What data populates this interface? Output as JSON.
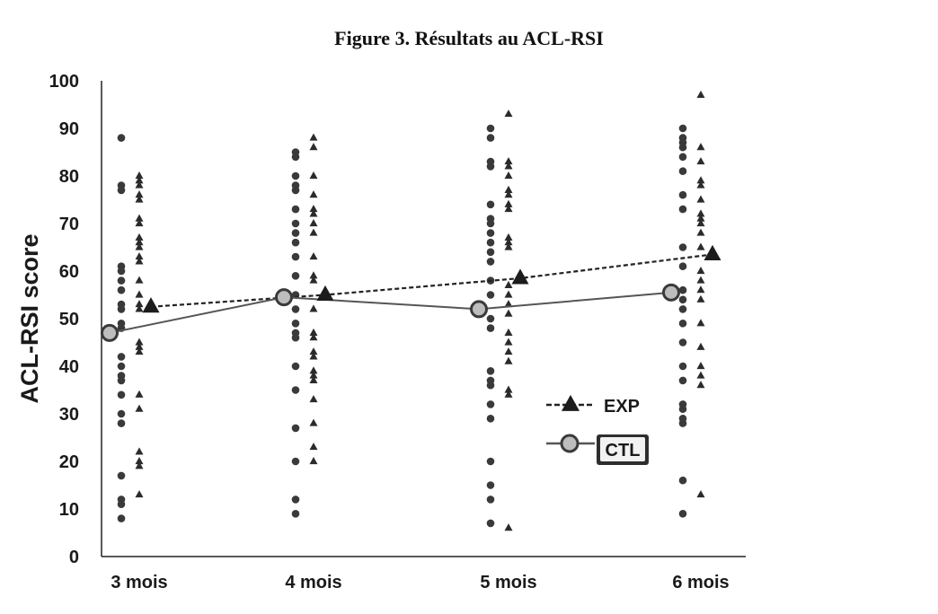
{
  "chart_data": {
    "type": "scatter",
    "title": "Figure 3. Résultats au ACL-RSI",
    "ylabel": "ACL-RSI score",
    "xlabel": "",
    "ylim": [
      0,
      100
    ],
    "yticks": [
      0,
      10,
      20,
      30,
      40,
      50,
      60,
      70,
      80,
      90,
      100
    ],
    "categories": [
      "3 mois",
      "4 mois",
      "5 mois",
      "6 mois"
    ],
    "grid": false,
    "legend_position": "right",
    "series": [
      {
        "name": "EXP",
        "marker": "triangle",
        "line": "dashed",
        "means": [
          52.5,
          55,
          58.5,
          63.5
        ],
        "points": [
          [
            80,
            79,
            78,
            76,
            75,
            71,
            70,
            67,
            66,
            65,
            63,
            62,
            58,
            55,
            53,
            52,
            45,
            44,
            43,
            34,
            31,
            22,
            20,
            19,
            13
          ],
          [
            88,
            86,
            80,
            76,
            73,
            72,
            70,
            68,
            63,
            59,
            58,
            52,
            47,
            46,
            43,
            42,
            39,
            38,
            37,
            33,
            28,
            23,
            20
          ],
          [
            93,
            83,
            82,
            80,
            77,
            76,
            74,
            73,
            67,
            66,
            65,
            57,
            55,
            53,
            51,
            47,
            45,
            43,
            41,
            35,
            34,
            6
          ],
          [
            97,
            86,
            83,
            79,
            78,
            75,
            72,
            71,
            70,
            68,
            65,
            60,
            58,
            56,
            54,
            49,
            44,
            40,
            38,
            36,
            13
          ]
        ]
      },
      {
        "name": "CTL",
        "marker": "circle",
        "line": "solid",
        "means": [
          47,
          54.5,
          52,
          55.5
        ],
        "points": [
          [
            88,
            78,
            77,
            61,
            60,
            58,
            56,
            53,
            52,
            49,
            48,
            42,
            40,
            38,
            37,
            34,
            30,
            28,
            17,
            12,
            11,
            8
          ],
          [
            85,
            84,
            80,
            78,
            77,
            73,
            70,
            68,
            66,
            63,
            59,
            55,
            52,
            49,
            47,
            46,
            40,
            35,
            27,
            20,
            12,
            9
          ],
          [
            90,
            88,
            83,
            82,
            74,
            71,
            70,
            68,
            66,
            64,
            62,
            58,
            55,
            50,
            48,
            39,
            37,
            36,
            32,
            29,
            20,
            15,
            12,
            7
          ],
          [
            90,
            88,
            87,
            86,
            84,
            81,
            76,
            73,
            65,
            61,
            56,
            54,
            52,
            49,
            45,
            40,
            37,
            32,
            31,
            29,
            28,
            16,
            9
          ]
        ]
      }
    ]
  }
}
